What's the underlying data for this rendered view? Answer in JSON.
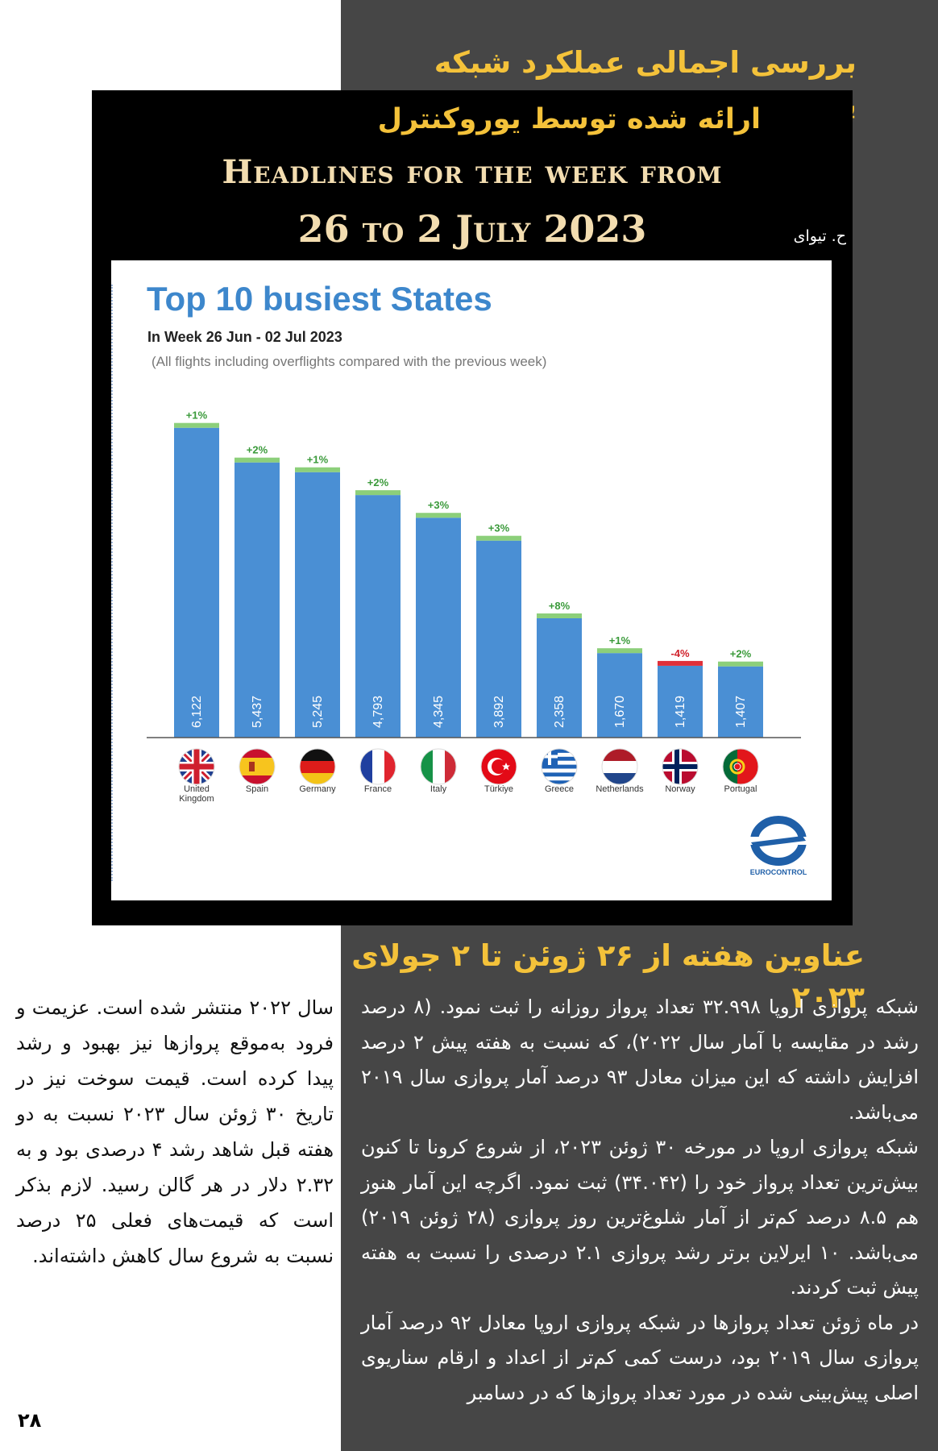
{
  "page": {
    "main_title": "بررسی اجمالی عملکرد شبکه پروازی اروپا",
    "sub_title": "ارائه شده توسط یوروکنترل",
    "headline_line1": "Headlines for the week from",
    "headline_line2": "26 to 2 July 2023",
    "author": "ح. تیوای",
    "section_title": "عناوین هفته  از ۲۶ ژوئن تا ۲ جولای ۲۰۲۳",
    "page_number": "۲۸",
    "body_right": [
      "شبکه پروازی اروپا ۳۲.۹۹۸ تعداد پرواز روزانه را ثبت نمود. (۸ درصد رشد در مقایسه با آمار سال ۲۰۲۲)، که نسبت به هفته پیش ۲ درصد افزایش داشته که این میزان معادل ۹۳ درصد آمار پروازی سال ۲۰۱۹ می‌باشد.",
      "شبکه پروازی اروپا در مورخه ۳۰ ژوئن ۲۰۲۳، از شروع کرونا تا کنون بیش‌ترین تعداد پرواز خود را (۳۴.۰۴۲) ثبت نمود. اگرچه این آمار هنوز هم ۸.۵ درصد کم‌تر از آمار شلوغ‌ترین روز پروازی (۲۸ ژوئن ۲۰۱۹) می‌باشد. ۱۰ ایرلاین برتر رشد پروازی ۲.۱ درصدی را نسبت به هفته پیش ثبت کردند.",
      "در ماه ژوئن تعداد پروازها در شبکه پروازی اروپا معادل ۹۲ درصد آمار پروازی سال ۲۰۱۹ بود، درست کمی کم‌تر از اعداد و ارقام سناریوی اصلی پیش‌بینی شده در مورد تعداد پروازها که در دسامبر"
    ],
    "body_left": "سال ۲۰۲۲ منتشر شده است. عزیمت و فرود به‌موقع پروازها نیز بهبود و رشد پیدا کرده است. قیمت سوخت نیز در تاریخ ۳۰ ژوئن سال ۲۰۲۳ نسبت به دو هفته قبل شاهد رشد ۴ درصدی بود و به ۲.۳۲ دلار در هر گالن رسید. لازم بذکر است که قیمت‌های فعلی ۲۵ درصد نسبت به شروع سال کاهش داشته‌اند."
  },
  "chart_data": {
    "type": "bar",
    "title": "Top 10 busiest States",
    "subtitle": "In Week 26 Jun - 02 Jul 2023",
    "note": "(All flights including overflights compared with the previous week)",
    "categories": [
      "United Kingdom",
      "Spain",
      "Germany",
      "France",
      "Italy",
      "Türkiye",
      "Greece",
      "Netherlands",
      "Norway",
      "Portugal"
    ],
    "values": [
      6122,
      5437,
      5245,
      4793,
      4345,
      3892,
      2358,
      1670,
      1419,
      1407
    ],
    "value_labels": [
      "6,122",
      "5,437",
      "5,245",
      "4,793",
      "4,345",
      "3,892",
      "2,358",
      "1,670",
      "1,419",
      "1,407"
    ],
    "changes": [
      "+1%",
      "+2%",
      "+1%",
      "+2%",
      "+3%",
      "+3%",
      "+8%",
      "+1%",
      "-4%",
      "+2%"
    ],
    "ylim": [
      0,
      6500
    ],
    "logo_text": "EUROCONTROL",
    "colors": {
      "bar": "#4a8fd4",
      "increase": "#8ccf7a",
      "decrease": "#e0303a",
      "increase_text": "#3a9a3a",
      "decrease_text": "#d0202a",
      "title": "#3d87cc"
    },
    "flags": [
      "uk-flag-icon",
      "spain-flag-icon",
      "germany-flag-icon",
      "france-flag-icon",
      "italy-flag-icon",
      "turkiye-flag-icon",
      "greece-flag-icon",
      "netherlands-flag-icon",
      "norway-flag-icon",
      "portugal-flag-icon"
    ]
  }
}
